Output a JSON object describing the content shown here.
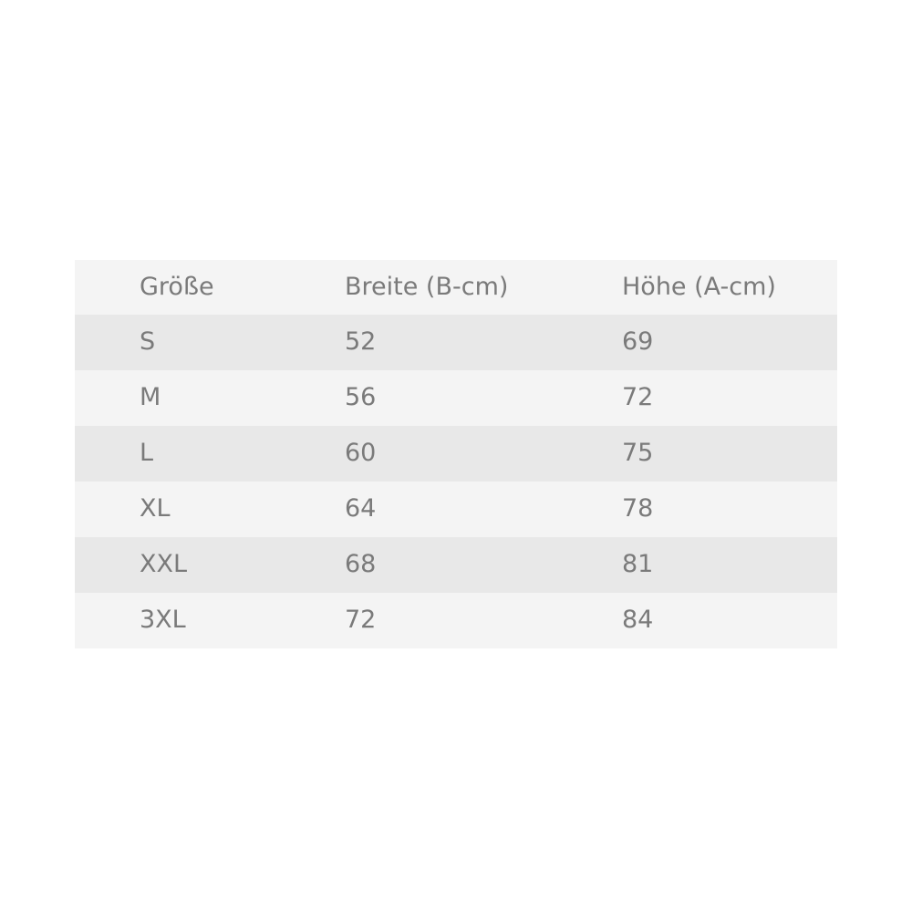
{
  "table": {
    "headers": [
      "Größe",
      "Breite (B-cm)",
      "Höhe (A-cm)"
    ],
    "rows": [
      [
        "S",
        "52",
        "69"
      ],
      [
        "M",
        "56",
        "72"
      ],
      [
        "L",
        "60",
        "75"
      ],
      [
        "XL",
        "64",
        "78"
      ],
      [
        "XXL",
        "68",
        "81"
      ],
      [
        "3XL",
        "72",
        "84"
      ]
    ]
  },
  "colors": {
    "row_light": "#f4f4f4",
    "row_dark": "#e8e8e8",
    "text": "#7a7a7a"
  }
}
